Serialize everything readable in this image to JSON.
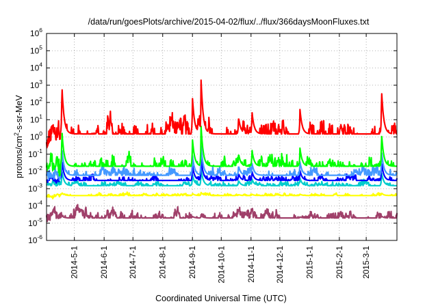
{
  "chart_data": {
    "type": "line",
    "title": "/data/run/goesPlots/archive/2015-04-02/flux/../flux/366daysMoonFluxes.txt",
    "xlabel": "Coordinated Universal Time (UTC)",
    "ylabel_parts": {
      "pre": "protons/cm",
      "sup": "2",
      "post": "-s-sr-MeV"
    },
    "yscale": "log",
    "ylim": [
      1e-06,
      1000000.0
    ],
    "xlim": [
      "2014-04-02",
      "2015-04-02"
    ],
    "grid": true,
    "y_ticks": [
      {
        "exp": "-6"
      },
      {
        "exp": "-5"
      },
      {
        "exp": "-4"
      },
      {
        "exp": "-3"
      },
      {
        "exp": "-2"
      },
      {
        "exp": "-1"
      },
      {
        "exp": "0"
      },
      {
        "exp": "1"
      },
      {
        "exp": "2"
      },
      {
        "exp": "3"
      },
      {
        "exp": "4"
      },
      {
        "exp": "5"
      },
      {
        "exp": "6"
      }
    ],
    "y_tick_base": "10",
    "x_ticks": [
      {
        "date": "2014-05-01",
        "label": "2014-5-1"
      },
      {
        "date": "2014-06-01",
        "label": "2014-6-1"
      },
      {
        "date": "2014-07-01",
        "label": "2014-7-1"
      },
      {
        "date": "2014-08-01",
        "label": "2014-8-1"
      },
      {
        "date": "2014-09-01",
        "label": "2014-9-1"
      },
      {
        "date": "2014-10-01",
        "label": "2014-10-1"
      },
      {
        "date": "2014-11-01",
        "label": "2014-11-1"
      },
      {
        "date": "2014-12-01",
        "label": "2014-12-1"
      },
      {
        "date": "2015-01-01",
        "label": "2015-1-1"
      },
      {
        "date": "2015-02-01",
        "label": "2015-2-1"
      },
      {
        "date": "2015-03-01",
        "label": "2015-3-1"
      }
    ],
    "series": [
      {
        "color": "#a0406a",
        "base": 2e-05,
        "noise": 0.35
      },
      {
        "color": "#ffff00",
        "base": 0.0004,
        "noise": 0.12
      },
      {
        "color": "#00cccc",
        "base": 0.0015,
        "noise": 0.2
      },
      {
        "color": "#0000ff",
        "base": 0.003,
        "noise": 0.25
      },
      {
        "color": "#4499ff",
        "base": 0.006,
        "noise": 0.4
      },
      {
        "color": "#00ff00",
        "base": 0.02,
        "noise": 0.55
      },
      {
        "color": "#ff0000",
        "base": 1.5,
        "noise": 0.7
      }
    ],
    "events": [
      {
        "date": "2014-04-18",
        "peak": 1000.0
      },
      {
        "date": "2014-09-01",
        "peak": 200.0
      },
      {
        "date": "2014-09-10",
        "peak": 2000.0
      },
      {
        "date": "2014-10-19",
        "peak": 15
      },
      {
        "date": "2014-11-02",
        "peak": 30
      },
      {
        "date": "2014-12-22",
        "peak": 40
      },
      {
        "date": "2015-03-17",
        "peak": 500
      }
    ]
  }
}
